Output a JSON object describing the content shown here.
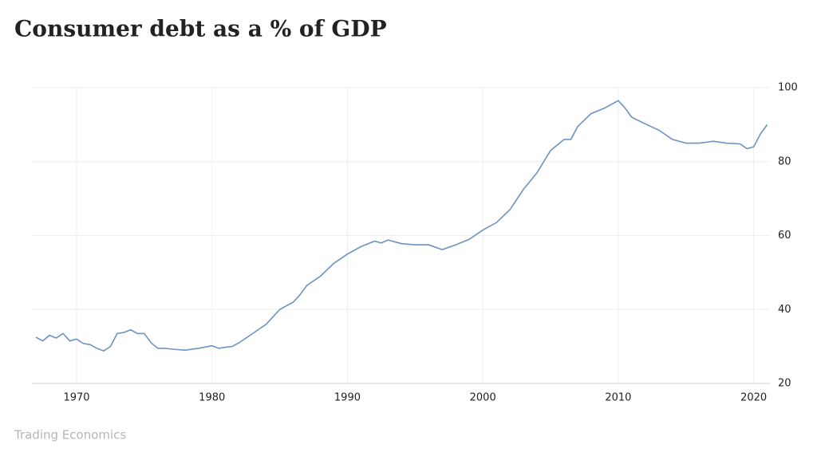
{
  "chart_data": {
    "type": "line",
    "title": "Consumer debt as a % of GDP",
    "source": "Trading Economics",
    "x": [
      1967.0,
      1967.5,
      1968.0,
      1968.5,
      1969.0,
      1969.5,
      1970.0,
      1970.5,
      1971.0,
      1971.5,
      1972.0,
      1972.5,
      1973.0,
      1973.5,
      1974.0,
      1974.5,
      1975.0,
      1975.5,
      1976.0,
      1976.5,
      1977.0,
      1978.0,
      1979.0,
      1980.0,
      1980.5,
      1981.0,
      1981.5,
      1982.0,
      1983.0,
      1984.0,
      1985.0,
      1985.5,
      1986.0,
      1986.5,
      1987.0,
      1988.0,
      1989.0,
      1990.0,
      1991.0,
      1992.0,
      1992.5,
      1993.0,
      1994.0,
      1995.0,
      1996.0,
      1997.0,
      1998.0,
      1999.0,
      2000.0,
      2001.0,
      2002.0,
      2003.0,
      2004.0,
      2005.0,
      2006.0,
      2006.5,
      2007.0,
      2008.0,
      2009.0,
      2010.0,
      2010.5,
      2011.0,
      2012.0,
      2013.0,
      2014.0,
      2015.0,
      2016.0,
      2017.0,
      2018.0,
      2019.0,
      2019.5,
      2020.0,
      2020.5,
      2021.0
    ],
    "series": [
      {
        "name": "Consumer debt",
        "color": "#6d93c0",
        "values": [
          32.5,
          31.5,
          33,
          32.3,
          33.5,
          31.5,
          32,
          30.8,
          30.5,
          29.5,
          28.8,
          30,
          33.5,
          33.8,
          34.5,
          33.5,
          33.5,
          31,
          29.5,
          29.5,
          29.3,
          29,
          29.5,
          30.2,
          29.5,
          29.8,
          30,
          31,
          33.5,
          36,
          40,
          41,
          42,
          44,
          46.5,
          49,
          52.5,
          55,
          57,
          58.5,
          58,
          58.8,
          57.8,
          57.5,
          57.5,
          56.2,
          57.5,
          59,
          61.5,
          63.5,
          67,
          72.5,
          77,
          83,
          86,
          86,
          89.5,
          93,
          94.5,
          96.5,
          94.5,
          92,
          90.2,
          88.5,
          86,
          85,
          85,
          85.5,
          85,
          84.8,
          83.5,
          84,
          87.5,
          90
        ]
      }
    ],
    "xlim": [
      1966.7,
      2021.2
    ],
    "xticks": [
      1970,
      1980,
      1990,
      2000,
      2010,
      2020
    ],
    "ylim": [
      20,
      100
    ],
    "yticks": [
      20,
      40,
      60,
      80,
      100
    ],
    "grid": true
  }
}
